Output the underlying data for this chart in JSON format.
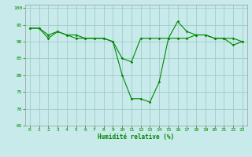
{
  "title": "",
  "xlabel": "Humidité relative (%)",
  "ylabel": "",
  "bg_color": "#c8eaea",
  "grid_color": "#a0cccc",
  "line_color": "#008800",
  "xlim": [
    -0.5,
    23.5
  ],
  "ylim": [
    65,
    101
  ],
  "yticks": [
    65,
    70,
    75,
    80,
    85,
    90,
    95,
    100
  ],
  "xticks": [
    0,
    1,
    2,
    3,
    4,
    5,
    6,
    7,
    8,
    9,
    10,
    11,
    12,
    13,
    14,
    15,
    16,
    17,
    18,
    19,
    20,
    21,
    22,
    23
  ],
  "series1": [
    94,
    94,
    91,
    93,
    92,
    91,
    91,
    91,
    91,
    90,
    80,
    73,
    73,
    72,
    78,
    91,
    96,
    93,
    92,
    92,
    91,
    91,
    89,
    90
  ],
  "series2": [
    94,
    94,
    92,
    93,
    92,
    92,
    91,
    91,
    91,
    90,
    85,
    84,
    91,
    91,
    91,
    91,
    91,
    91,
    92,
    92,
    91,
    91,
    91,
    90
  ]
}
